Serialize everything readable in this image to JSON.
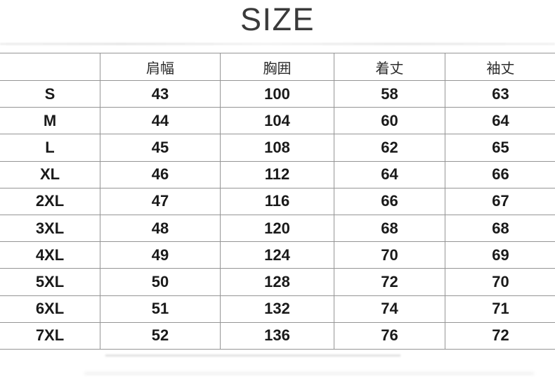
{
  "chart_data": {
    "type": "table",
    "title": "SIZE",
    "columns": [
      "",
      "肩幅",
      "胸囲",
      "着丈",
      "袖丈"
    ],
    "rows": [
      [
        "S",
        43,
        100,
        58,
        63
      ],
      [
        "M",
        44,
        104,
        60,
        64
      ],
      [
        "L",
        45,
        108,
        62,
        65
      ],
      [
        "XL",
        46,
        112,
        64,
        66
      ],
      [
        "2XL",
        47,
        116,
        66,
        67
      ],
      [
        "3XL",
        48,
        120,
        68,
        68
      ],
      [
        "4XL",
        49,
        124,
        70,
        69
      ],
      [
        "5XL",
        50,
        128,
        72,
        70
      ],
      [
        "6XL",
        51,
        132,
        74,
        71
      ],
      [
        "7XL",
        52,
        136,
        76,
        72
      ]
    ]
  },
  "colors": {
    "background": "#ffffff",
    "title_text": "#3a3a3a",
    "table_border": "#959595",
    "header_text": "#2b2b2b",
    "cell_text": "#1a1a1a"
  }
}
